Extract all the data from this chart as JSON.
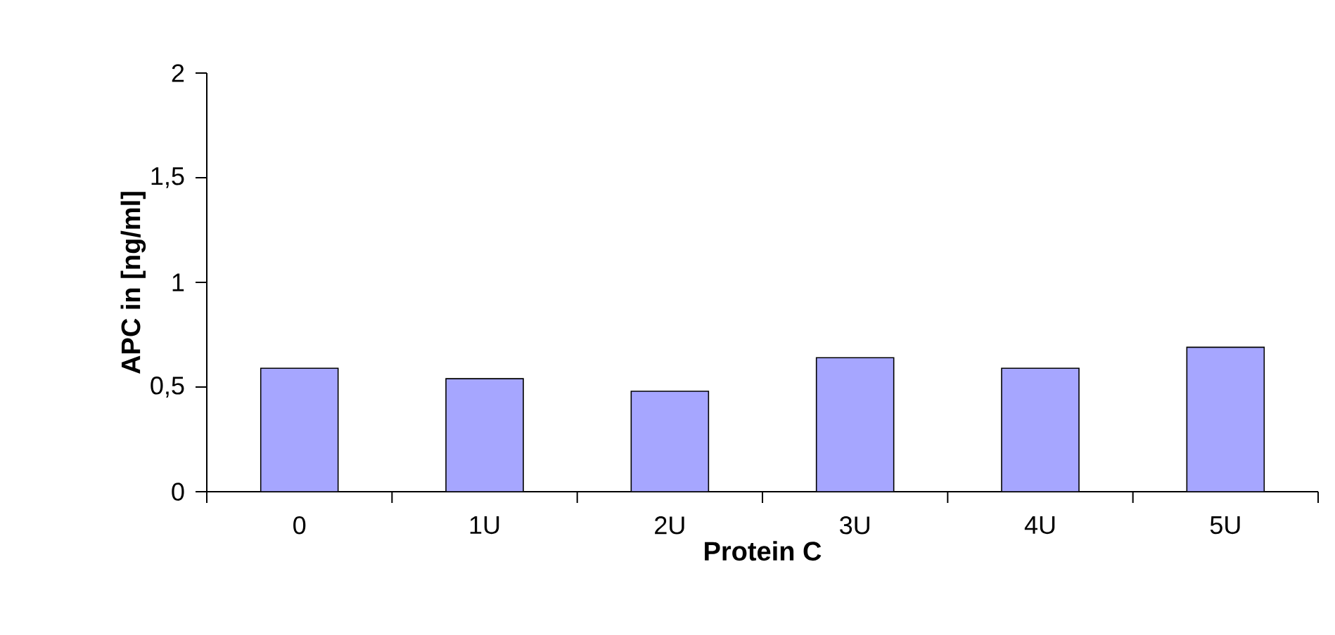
{
  "chart_data": {
    "type": "bar",
    "xlabel": "Protein C",
    "ylabel": "APC in [ng/ml]",
    "categories": [
      "0",
      "1U",
      "2U",
      "3U",
      "4U",
      "5U"
    ],
    "values": [
      0.59,
      0.54,
      0.48,
      0.64,
      0.59,
      0.69
    ],
    "color": "#a6a6ff",
    "ylim": [
      0,
      2
    ],
    "yticks": [
      0,
      {
        "value": 0.5,
        "label": "0,5"
      },
      1,
      {
        "value": 1.5,
        "label": "1,5"
      },
      2
    ],
    "grid": false
  }
}
